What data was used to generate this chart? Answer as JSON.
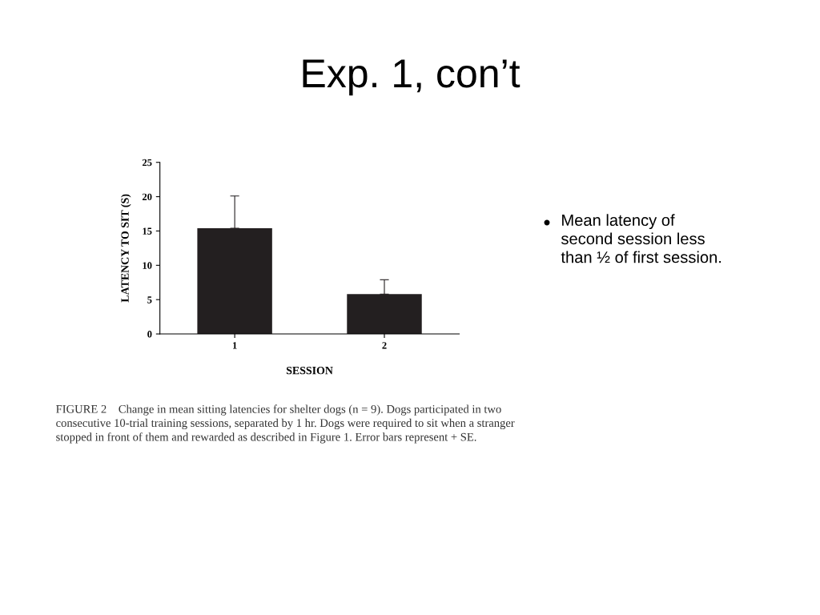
{
  "chart_data": {
    "type": "bar",
    "title": "Exp. 1, con’t",
    "categories": [
      "1",
      "2"
    ],
    "values": [
      15.4,
      5.8
    ],
    "errors": [
      [
        15.4,
        20.1
      ],
      [
        5.8,
        7.9
      ]
    ],
    "color": "#231f20",
    "xlabel": "SESSION",
    "ylabel": "LATENCY TO SIT (S)",
    "ylim": [
      0,
      25
    ],
    "yticks": [
      0,
      5,
      10,
      15,
      20,
      25
    ],
    "grid": false,
    "legend": false,
    "annotations": [
      "Mean latency of\nsecond session less\nthan ½ of first session.",
      "FIGURE 2    Change in mean sitting latencies for shelter dogs (n = 9). Dogs participated in two\nconsecutive 10-trial training sessions, separated by 1 hr. Dogs were required to sit when a stranger\nstopped in front of them and rewarded as described in Figure 1. Error bars represent + SE."
    ]
  }
}
